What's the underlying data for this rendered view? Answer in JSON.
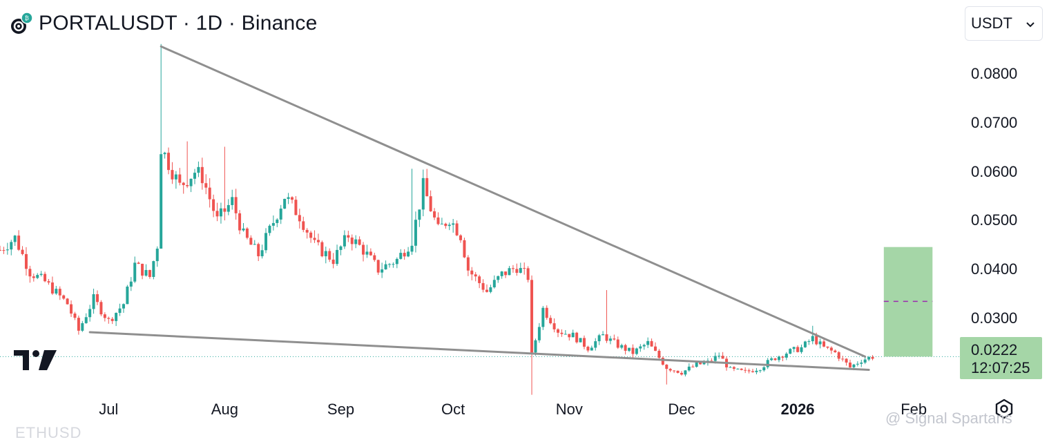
{
  "header": {
    "title": "PORTALUSDT · 1D · Binance"
  },
  "currency_select": {
    "value": "USDT"
  },
  "price_badge": {
    "price": "0.0222",
    "countdown": "12:07:25"
  },
  "watermark": {
    "text": "@ Signal Spartans"
  },
  "ghost_text": "ETHUSD",
  "colors": {
    "up": "#26a69a",
    "down": "#ef5350",
    "trendline": "#8f8f8f",
    "target_box": "#a5d6a7",
    "target_mid": "#9c27b0",
    "badge": "#a5d6a7"
  },
  "icons": {
    "logo": "portal-token-logo",
    "brand": "tradingview-logo",
    "settings": "settings-gear-icon",
    "dropdown": "chevron-down-icon"
  },
  "chart_data": {
    "type": "candlestick",
    "symbol": "PORTALUSDT",
    "interval": "1D",
    "exchange": "Binance",
    "y_axis": {
      "ticks": [
        "0.0800",
        "0.0700",
        "0.0600",
        "0.0500",
        "0.0400",
        "0.0300"
      ],
      "range": [
        0.0135,
        0.0886
      ],
      "side": "right"
    },
    "x_axis": {
      "ticks": [
        {
          "label": "Jul",
          "date": "2025-07-01"
        },
        {
          "label": "Aug",
          "date": "2025-08-01"
        },
        {
          "label": "Sep",
          "date": "2025-09-01"
        },
        {
          "label": "Oct",
          "date": "2025-10-01"
        },
        {
          "label": "Nov",
          "date": "2025-11-01"
        },
        {
          "label": "Dec",
          "date": "2025-12-01"
        },
        {
          "label": "2026",
          "date": "2026-01-01",
          "bold": true
        },
        {
          "label": "Feb",
          "date": "2026-02-01"
        }
      ],
      "range": [
        "2025-06-02",
        "2026-02-10"
      ]
    },
    "current_price": 0.0222,
    "anchors": [
      [
        "2025-06-02",
        0.044
      ],
      [
        "2025-06-06",
        0.0465
      ],
      [
        "2025-06-10",
        0.0395
      ],
      [
        "2025-06-14",
        0.0375
      ],
      [
        "2025-06-20",
        0.033
      ],
      [
        "2025-06-23",
        0.0275
      ],
      [
        "2025-06-27",
        0.034
      ],
      [
        "2025-07-01",
        0.0295
      ],
      [
        "2025-07-05",
        0.033
      ],
      [
        "2025-07-08",
        0.041
      ],
      [
        "2025-07-12",
        0.0385
      ],
      [
        "2025-07-14",
        0.045
      ],
      [
        "2025-07-15",
        0.065
      ],
      [
        "2025-07-20",
        0.057
      ],
      [
        "2025-07-24",
        0.06
      ],
      [
        "2025-07-26",
        0.059
      ],
      [
        "2025-07-30",
        0.05
      ],
      [
        "2025-08-03",
        0.054
      ],
      [
        "2025-08-06",
        0.047
      ],
      [
        "2025-08-10",
        0.043
      ],
      [
        "2025-08-13",
        0.048
      ],
      [
        "2025-08-17",
        0.055
      ],
      [
        "2025-08-21",
        0.051
      ],
      [
        "2025-08-25",
        0.045
      ],
      [
        "2025-08-30",
        0.042
      ],
      [
        "2025-09-03",
        0.047
      ],
      [
        "2025-09-07",
        0.044
      ],
      [
        "2025-09-11",
        0.04
      ],
      [
        "2025-09-16",
        0.042
      ],
      [
        "2025-09-20",
        0.046
      ],
      [
        "2025-09-23",
        0.057
      ],
      [
        "2025-09-27",
        0.048
      ],
      [
        "2025-09-30",
        0.0505
      ],
      [
        "2025-10-03",
        0.047
      ],
      [
        "2025-10-05",
        0.04
      ],
      [
        "2025-10-10",
        0.0355
      ],
      [
        "2025-10-14",
        0.039
      ],
      [
        "2025-10-18",
        0.0405
      ],
      [
        "2025-10-21",
        0.0385
      ],
      [
        "2025-10-22",
        0.0225
      ],
      [
        "2025-10-25",
        0.032
      ],
      [
        "2025-10-29",
        0.0275
      ],
      [
        "2025-11-02",
        0.0265
      ],
      [
        "2025-11-06",
        0.024
      ],
      [
        "2025-11-10",
        0.0265
      ],
      [
        "2025-11-14",
        0.0245
      ],
      [
        "2025-11-18",
        0.023
      ],
      [
        "2025-11-22",
        0.025
      ],
      [
        "2025-11-27",
        0.02
      ],
      [
        "2025-12-01",
        0.019
      ],
      [
        "2025-12-05",
        0.0205
      ],
      [
        "2025-12-08",
        0.021
      ],
      [
        "2025-12-11",
        0.0225
      ],
      [
        "2025-12-14",
        0.0195
      ],
      [
        "2025-12-18",
        0.019
      ],
      [
        "2025-12-22",
        0.02
      ],
      [
        "2025-12-26",
        0.022
      ],
      [
        "2025-12-29",
        0.023
      ],
      [
        "2026-01-02",
        0.024
      ],
      [
        "2026-01-05",
        0.026
      ],
      [
        "2026-01-08",
        0.024
      ],
      [
        "2026-01-11",
        0.023
      ],
      [
        "2026-01-15",
        0.02
      ],
      [
        "2026-01-18",
        0.0215
      ],
      [
        "2026-01-21",
        0.0222
      ]
    ],
    "wicks": [
      {
        "date": "2025-07-15",
        "high": 0.0861
      },
      {
        "date": "2025-07-22",
        "high": 0.0662
      },
      {
        "date": "2025-08-01",
        "high": 0.0651
      },
      {
        "date": "2025-09-20",
        "high": 0.0606
      },
      {
        "date": "2025-10-22",
        "low": 0.0144
      },
      {
        "date": "2025-11-11",
        "high": 0.0358
      },
      {
        "date": "2025-11-27",
        "low": 0.0165
      },
      {
        "date": "2026-01-05",
        "high": 0.0285
      }
    ],
    "trendlines": [
      {
        "name": "upper",
        "from": [
          "2025-07-15",
          0.0856
        ],
        "to": [
          "2026-01-19",
          0.0222
        ]
      },
      {
        "name": "lower",
        "from": [
          "2025-06-26",
          0.0272
        ],
        "to": [
          "2026-01-20",
          0.0195
        ]
      }
    ],
    "target_box": {
      "date_from": "2026-01-24",
      "date_to": "2026-02-06",
      "price_from": 0.0222,
      "price_to": 0.0446,
      "mid": 0.0335
    },
    "grid": false
  }
}
